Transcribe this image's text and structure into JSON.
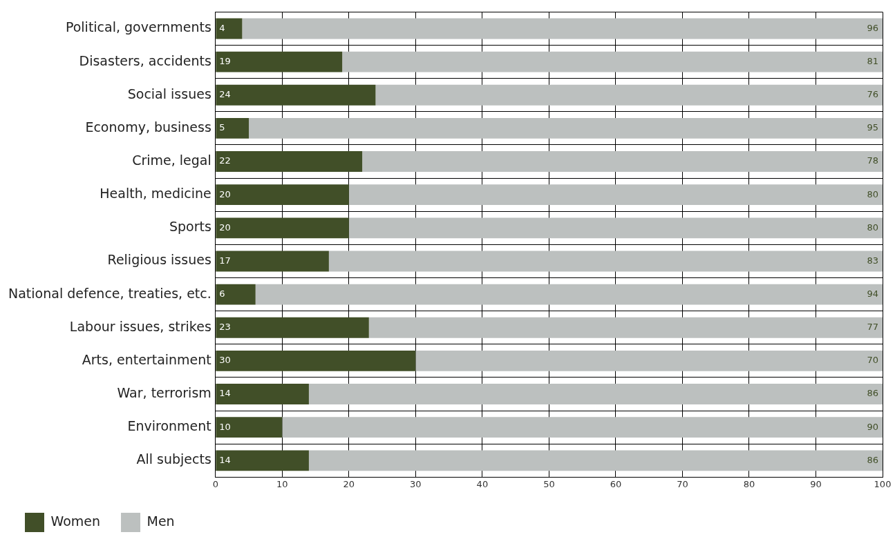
{
  "chart_data": {
    "type": "bar",
    "orientation": "horizontal",
    "stacked": true,
    "categories": [
      "Political, governments",
      "Disasters, accidents",
      "Social issues",
      "Economy, business",
      "Crime, legal",
      "Health, medicine",
      "Sports",
      "Religious issues",
      "National defence, treaties, etc.",
      "Labour issues, strikes",
      "Arts, entertainment",
      "War, terrorism",
      "Environment",
      "All subjects"
    ],
    "series": [
      {
        "name": "Women",
        "color": "#414f28",
        "values": [
          4,
          19,
          24,
          5,
          22,
          20,
          20,
          17,
          6,
          23,
          30,
          14,
          10,
          14
        ]
      },
      {
        "name": "Men",
        "color": "#bcc0bf",
        "values": [
          96,
          81,
          76,
          95,
          78,
          80,
          80,
          83,
          94,
          77,
          70,
          86,
          90,
          86
        ]
      }
    ],
    "xlim": [
      0,
      100
    ],
    "xticks": [
      0,
      10,
      20,
      30,
      40,
      50,
      60,
      70,
      80,
      90,
      100
    ],
    "grid": true,
    "legend": "bottom",
    "data_labels": true
  }
}
